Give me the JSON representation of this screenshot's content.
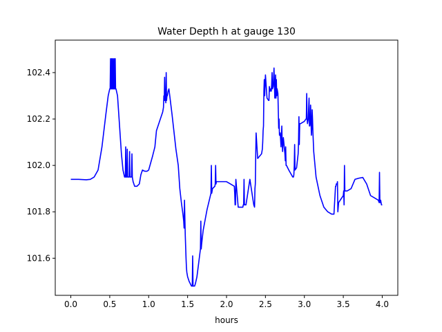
{
  "chart_data": {
    "type": "line",
    "title": "Water Depth h at gauge 130",
    "xlabel": "hours",
    "ylabel": "",
    "xlim": [
      -0.2,
      4.2
    ],
    "ylim": [
      101.44,
      102.54
    ],
    "xticks": [
      0.0,
      0.5,
      1.0,
      1.5,
      2.0,
      2.5,
      3.0,
      3.5,
      4.0
    ],
    "xtick_labels": [
      "0.0",
      "0.5",
      "1.0",
      "1.5",
      "2.0",
      "2.5",
      "3.0",
      "3.5",
      "4.0"
    ],
    "yticks": [
      101.6,
      101.8,
      102.0,
      102.2,
      102.4
    ],
    "ytick_labels": [
      "101.6",
      "101.8",
      "102.0",
      "102.2",
      "102.4"
    ],
    "grid": false,
    "legend": "none",
    "series": [
      {
        "color": "#0000ff",
        "x": [
          0.0,
          0.1,
          0.2,
          0.25,
          0.3,
          0.35,
          0.4,
          0.45,
          0.48,
          0.5,
          0.505,
          0.51,
          0.515,
          0.52,
          0.525,
          0.53,
          0.535,
          0.54,
          0.545,
          0.55,
          0.555,
          0.56,
          0.565,
          0.57,
          0.575,
          0.58,
          0.6,
          0.62,
          0.65,
          0.67,
          0.69,
          0.7,
          0.705,
          0.71,
          0.72,
          0.725,
          0.73,
          0.75,
          0.755,
          0.76,
          0.77,
          0.78,
          0.785,
          0.79,
          0.8,
          0.82,
          0.85,
          0.88,
          0.9,
          0.92,
          0.95,
          0.98,
          1.0,
          1.05,
          1.08,
          1.1,
          1.15,
          1.18,
          1.19,
          1.195,
          1.2,
          1.205,
          1.21,
          1.215,
          1.22,
          1.225,
          1.23,
          1.235,
          1.24,
          1.245,
          1.25,
          1.26,
          1.3,
          1.35,
          1.38,
          1.4,
          1.42,
          1.44,
          1.45,
          1.455,
          1.46,
          1.47,
          1.48,
          1.485,
          1.49,
          1.5,
          1.52,
          1.55,
          1.56,
          1.565,
          1.57,
          1.59,
          1.6,
          1.62,
          1.65,
          1.665,
          1.67,
          1.675,
          1.68,
          1.7,
          1.75,
          1.8,
          1.805,
          1.81,
          1.815,
          1.82,
          1.85,
          1.855,
          1.86,
          1.865,
          1.87,
          1.9,
          1.95,
          2.0,
          2.05,
          2.1,
          2.105,
          2.11,
          2.115,
          2.12,
          2.15,
          2.2,
          2.21,
          2.215,
          2.22,
          2.225,
          2.23,
          2.25,
          2.3,
          2.35,
          2.36,
          2.365,
          2.37,
          2.375,
          2.38,
          2.4,
          2.45,
          2.46,
          2.465,
          2.47,
          2.475,
          2.48,
          2.485,
          2.49,
          2.5,
          2.52,
          2.54,
          2.545,
          2.55,
          2.56,
          2.57,
          2.575,
          2.58,
          2.585,
          2.59,
          2.6,
          2.61,
          2.62,
          2.63,
          2.635,
          2.64,
          2.645,
          2.65,
          2.66,
          2.67,
          2.675,
          2.68,
          2.69,
          2.7,
          2.71,
          2.715,
          2.72,
          2.73,
          2.75,
          2.755,
          2.76,
          2.765,
          2.77,
          2.8,
          2.85,
          2.86,
          2.865,
          2.87,
          2.875,
          2.88,
          2.9,
          2.92,
          2.925,
          2.93,
          2.935,
          2.94,
          2.95,
          3.0,
          3.02,
          3.025,
          3.03,
          3.035,
          3.04,
          3.05,
          3.06,
          3.065,
          3.07,
          3.075,
          3.08,
          3.09,
          3.095,
          3.1,
          3.105,
          3.11,
          3.12,
          3.15,
          3.2,
          3.25,
          3.3,
          3.35,
          3.38,
          3.4,
          3.405,
          3.41,
          3.42,
          3.425,
          3.43,
          3.435,
          3.44,
          3.5,
          3.505,
          3.51,
          3.515,
          3.52,
          3.55,
          3.6,
          3.65,
          3.7,
          3.75,
          3.8,
          3.85,
          3.9,
          3.95,
          3.96,
          3.965,
          3.97,
          3.975,
          3.98,
          3.99,
          4.0
        ],
        "y": [
          101.94,
          101.94,
          101.938,
          101.94,
          101.95,
          101.98,
          102.08,
          102.22,
          102.3,
          102.33,
          102.33,
          102.46,
          102.33,
          102.33,
          102.46,
          102.33,
          102.33,
          102.46,
          102.33,
          102.33,
          102.46,
          102.33,
          102.33,
          102.46,
          102.33,
          102.33,
          102.3,
          102.2,
          102.05,
          101.98,
          101.95,
          101.95,
          102.08,
          101.95,
          101.95,
          102.07,
          101.95,
          101.95,
          102.06,
          101.95,
          101.95,
          101.95,
          102.05,
          101.95,
          101.93,
          101.91,
          101.91,
          101.92,
          101.96,
          101.98,
          101.975,
          101.975,
          101.98,
          102.04,
          102.08,
          102.15,
          102.2,
          102.23,
          102.25,
          102.3,
          102.28,
          102.38,
          102.28,
          102.3,
          102.27,
          102.4,
          102.28,
          102.3,
          102.3,
          102.31,
          102.32,
          102.33,
          102.22,
          102.07,
          102.0,
          101.9,
          101.84,
          101.79,
          101.76,
          101.73,
          101.85,
          101.7,
          101.6,
          101.56,
          101.54,
          101.52,
          101.5,
          101.48,
          101.48,
          101.61,
          101.48,
          101.48,
          101.49,
          101.52,
          101.6,
          101.64,
          101.76,
          101.64,
          101.66,
          101.72,
          101.81,
          101.88,
          102.0,
          101.88,
          101.89,
          101.9,
          101.91,
          101.92,
          102.0,
          101.92,
          101.93,
          101.93,
          101.93,
          101.93,
          101.92,
          101.91,
          101.88,
          101.83,
          101.83,
          101.94,
          101.82,
          101.82,
          101.82,
          101.83,
          101.83,
          101.94,
          101.83,
          101.83,
          101.94,
          101.83,
          101.82,
          101.9,
          101.92,
          102.04,
          102.14,
          102.03,
          102.05,
          102.07,
          102.1,
          102.15,
          102.17,
          102.32,
          102.37,
          102.3,
          102.39,
          102.29,
          102.28,
          102.28,
          102.34,
          102.32,
          102.33,
          102.32,
          102.35,
          102.4,
          102.33,
          102.34,
          102.42,
          102.29,
          102.39,
          102.29,
          102.37,
          102.3,
          102.33,
          102.31,
          102.16,
          102.2,
          102.13,
          102.14,
          102.08,
          102.17,
          102.1,
          102.06,
          102.12,
          102.05,
          102.02,
          102.08,
          102.0,
          102.0,
          101.98,
          101.95,
          101.95,
          101.96,
          102.0,
          102.09,
          101.98,
          101.99,
          102.05,
          102.1,
          102.21,
          102.09,
          102.18,
          102.18,
          102.19,
          102.2,
          102.2,
          102.31,
          102.2,
          102.18,
          102.2,
          102.29,
          102.17,
          102.17,
          102.19,
          102.26,
          102.13,
          102.16,
          102.24,
          102.2,
          102.14,
          102.06,
          101.95,
          101.87,
          101.82,
          101.8,
          101.79,
          101.79,
          101.91,
          101.91,
          101.92,
          101.92,
          101.93,
          101.8,
          101.82,
          101.84,
          101.87,
          101.89,
          101.83,
          102.0,
          101.89,
          101.89,
          101.9,
          101.94,
          101.945,
          101.948,
          101.92,
          101.87,
          101.86,
          101.85,
          101.84,
          101.97,
          101.84,
          101.84,
          101.85,
          101.83,
          101.83
        ]
      }
    ]
  }
}
